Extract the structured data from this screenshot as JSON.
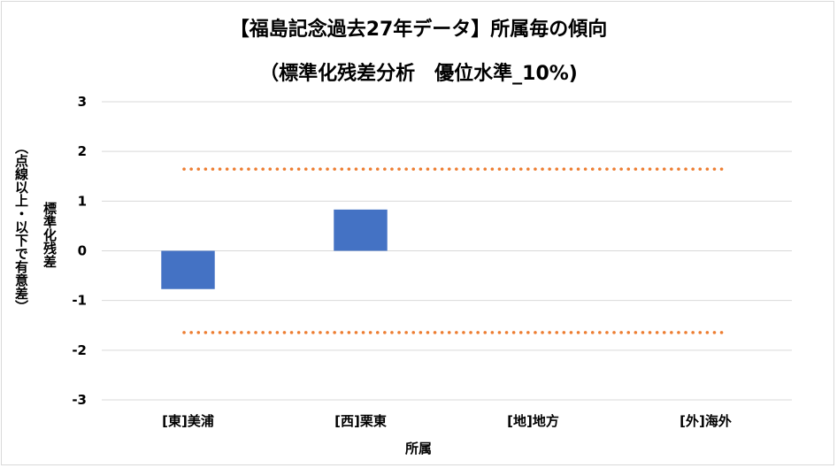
{
  "chart_data": {
    "type": "bar",
    "title": "【福島記念過去27年データ】所属毎の傾向",
    "subtitle": "（標準化残差分析　優位水準_10%)",
    "ylabel": "標準化残差",
    "ylabel_note": "（点線以上・以下で有意差）",
    "xlabel": "所属",
    "categories": [
      "[東]美浦",
      "[西]栗東",
      "[地]地方",
      "[外]海外"
    ],
    "values": [
      -0.77,
      0.83,
      0,
      0
    ],
    "ylim": [
      -3,
      3
    ],
    "yticks": [
      3,
      2,
      1,
      0,
      -1,
      -2,
      -3
    ],
    "threshold_lines": [
      1.645,
      -1.645
    ],
    "grid": true,
    "legend": "none",
    "colors": {
      "bar": "#4472c4",
      "threshold": "#ed7d31",
      "grid": "#d9d9d9"
    }
  }
}
